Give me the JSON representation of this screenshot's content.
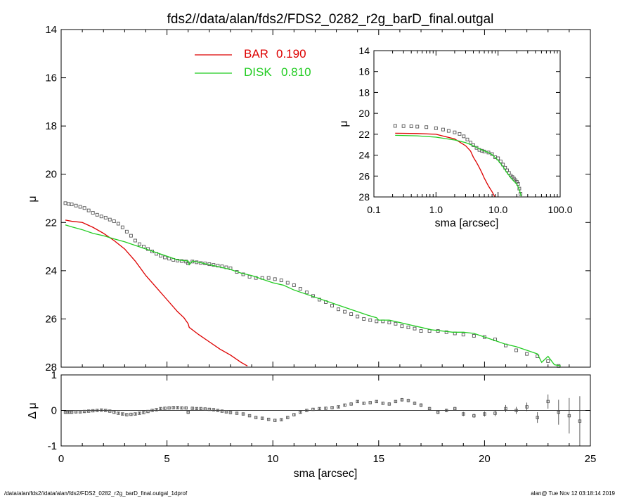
{
  "chart_data": [
    {
      "id": "main",
      "type": "scatter",
      "title": "fds2//data/alan/fds2/FDS2_0282_r2g_barD_final.outgal",
      "xlabel": "sma [arcsec]",
      "ylabel": "μ",
      "xlim": [
        0,
        25
      ],
      "ylim": [
        28,
        14
      ],
      "xticks": [
        0,
        5,
        10,
        15,
        20,
        25
      ],
      "yticks": [
        14,
        16,
        18,
        20,
        22,
        24,
        26,
        28
      ],
      "legend_position": "top-center",
      "series": [
        {
          "name": "BAR",
          "label": "BAR",
          "value_label": "0.190",
          "kind": "line",
          "color": "#dd0000",
          "x": [
            0.2,
            0.5,
            1.0,
            1.5,
            2.0,
            2.5,
            3.0,
            3.5,
            4.0,
            4.5,
            5.0,
            5.5,
            5.8,
            6.0,
            6.05,
            6.2,
            6.5,
            7.0,
            7.5,
            8.0,
            8.5,
            8.8
          ],
          "y": [
            21.9,
            21.95,
            22.0,
            22.2,
            22.45,
            22.75,
            23.1,
            23.6,
            24.2,
            24.7,
            25.2,
            25.7,
            25.95,
            26.2,
            26.35,
            26.45,
            26.65,
            26.95,
            27.25,
            27.5,
            27.8,
            27.95
          ]
        },
        {
          "name": "DISK",
          "label": "DISK",
          "value_label": "0.810",
          "kind": "line",
          "color": "#22cc22",
          "x": [
            0.2,
            0.5,
            1.0,
            1.5,
            2.0,
            2.5,
            3.0,
            3.5,
            4.0,
            4.5,
            5.0,
            5.5,
            6.0,
            6.05,
            6.2,
            6.5,
            7.0,
            7.5,
            8.0,
            8.5,
            9.0,
            9.5,
            10.0,
            10.5,
            11.0,
            11.5,
            12.0,
            12.5,
            13.0,
            13.5,
            14.0,
            14.5,
            14.9,
            15.0,
            15.5,
            16.0,
            16.5,
            17.0,
            17.5,
            18.0,
            18.5,
            19.0,
            19.5,
            20.0,
            20.5,
            21.0,
            21.5,
            22.0,
            22.5,
            22.7,
            23.0,
            23.3,
            23.6
          ],
          "y": [
            22.1,
            22.18,
            22.3,
            22.45,
            22.55,
            22.68,
            22.8,
            22.95,
            23.1,
            23.25,
            23.4,
            23.55,
            23.6,
            23.75,
            23.6,
            23.65,
            23.75,
            23.85,
            23.95,
            24.1,
            24.2,
            24.35,
            24.5,
            24.6,
            24.8,
            24.95,
            25.1,
            25.25,
            25.4,
            25.55,
            25.7,
            25.85,
            25.95,
            26.05,
            26.05,
            26.15,
            26.25,
            26.35,
            26.45,
            26.5,
            26.55,
            26.55,
            26.6,
            26.75,
            26.9,
            27.05,
            27.15,
            27.3,
            27.45,
            27.8,
            27.55,
            27.9,
            27.95
          ]
        },
        {
          "name": "data",
          "kind": "markers",
          "color": "#555555",
          "x": [
            0.2,
            0.35,
            0.5,
            0.7,
            0.9,
            1.1,
            1.3,
            1.5,
            1.7,
            1.9,
            2.1,
            2.3,
            2.5,
            2.7,
            2.9,
            3.1,
            3.3,
            3.5,
            3.7,
            3.9,
            4.1,
            4.3,
            4.5,
            4.7,
            4.9,
            5.1,
            5.3,
            5.5,
            5.7,
            5.9,
            6.0,
            6.2,
            6.4,
            6.6,
            6.8,
            7.0,
            7.2,
            7.4,
            7.6,
            7.8,
            8.0,
            8.3,
            8.6,
            8.9,
            9.2,
            9.5,
            9.8,
            10.1,
            10.4,
            10.7,
            11.0,
            11.3,
            11.6,
            11.9,
            12.2,
            12.5,
            12.8,
            13.1,
            13.4,
            13.7,
            14.0,
            14.3,
            14.6,
            14.9,
            15.2,
            15.5,
            15.8,
            16.1,
            16.4,
            16.7,
            17.0,
            17.4,
            17.8,
            18.2,
            18.6,
            19.0,
            19.5,
            20.0,
            20.5,
            21.0,
            21.5,
            22.0,
            22.5,
            23.0,
            23.5
          ],
          "y": [
            21.2,
            21.23,
            21.25,
            21.3,
            21.35,
            21.4,
            21.5,
            21.6,
            21.68,
            21.75,
            21.8,
            21.88,
            21.95,
            22.05,
            22.2,
            22.38,
            22.55,
            22.75,
            22.9,
            23.0,
            23.1,
            23.2,
            23.3,
            23.38,
            23.45,
            23.5,
            23.55,
            23.58,
            23.6,
            23.62,
            23.7,
            23.62,
            23.65,
            23.68,
            23.7,
            23.73,
            23.76,
            23.79,
            23.82,
            23.86,
            23.9,
            24.05,
            24.15,
            24.25,
            24.3,
            24.3,
            24.3,
            24.35,
            24.4,
            24.5,
            24.6,
            24.75,
            24.9,
            25.05,
            25.2,
            25.3,
            25.45,
            25.6,
            25.7,
            25.8,
            25.9,
            26.0,
            26.05,
            26.1,
            26.1,
            26.15,
            26.2,
            26.3,
            26.35,
            26.4,
            26.5,
            26.5,
            26.5,
            26.55,
            26.6,
            26.65,
            26.7,
            26.75,
            26.85,
            27.1,
            27.3,
            27.45,
            27.55,
            27.75,
            27.95
          ]
        }
      ]
    },
    {
      "id": "inset",
      "type": "line",
      "xlabel": "sma [arcsec]",
      "ylabel": "μ",
      "xscale": "log",
      "xlim": [
        0.1,
        100.0
      ],
      "ylim": [
        28,
        14
      ],
      "xtick_labels": [
        "0.1",
        "1.0",
        "10.0",
        "100.0"
      ],
      "xtick_values": [
        0.1,
        1,
        10,
        100
      ],
      "yticks": [
        14,
        16,
        18,
        20,
        22,
        24,
        26,
        28
      ],
      "series": [
        {
          "name": "data",
          "kind": "markers",
          "color": "#555555",
          "x": [
            0.22,
            0.3,
            0.4,
            0.5,
            0.7,
            1.0,
            1.3,
            1.6,
            2.0,
            2.4,
            2.8,
            3.2,
            3.6,
            4.0,
            4.5,
            5.0,
            5.5,
            6.0,
            7.0,
            8.0,
            9.0,
            10.0,
            11.0,
            12.0,
            13.0,
            14.0,
            15.0,
            16.0,
            17.0,
            18.0,
            19.0,
            20.0,
            21.0,
            22.0,
            23.0
          ],
          "y": [
            21.2,
            21.22,
            21.24,
            21.27,
            21.32,
            21.42,
            21.55,
            21.68,
            21.82,
            21.97,
            22.2,
            22.5,
            22.8,
            23.05,
            23.3,
            23.5,
            23.58,
            23.65,
            23.75,
            23.9,
            24.2,
            24.3,
            24.6,
            24.9,
            25.2,
            25.45,
            25.7,
            25.95,
            26.1,
            26.25,
            26.4,
            26.55,
            26.75,
            27.2,
            27.7
          ]
        },
        {
          "name": "BAR",
          "kind": "line",
          "color": "#dd0000",
          "x": [
            0.22,
            0.5,
            1.0,
            2.0,
            3.0,
            3.6,
            4.0,
            4.5,
            5.0,
            5.5,
            6.0,
            7.0,
            8.0,
            8.8
          ],
          "y": [
            21.9,
            21.93,
            22.0,
            22.45,
            23.1,
            23.6,
            24.2,
            24.7,
            25.2,
            25.7,
            26.2,
            26.95,
            27.5,
            27.95
          ]
        },
        {
          "name": "DISK",
          "kind": "line",
          "color": "#22cc22",
          "x": [
            0.22,
            0.5,
            1.0,
            2.0,
            3.0,
            4.0,
            5.0,
            6.0,
            7.0,
            8.0,
            10.0,
            12.0,
            14.0,
            16.0,
            18.0,
            20.0,
            22.0,
            23.6
          ],
          "y": [
            22.1,
            22.15,
            22.28,
            22.55,
            22.8,
            23.1,
            23.4,
            23.6,
            23.75,
            23.95,
            24.5,
            25.1,
            25.7,
            26.15,
            26.5,
            26.75,
            27.3,
            27.95
          ]
        }
      ]
    },
    {
      "id": "residual",
      "type": "scatter",
      "xlabel": "sma [arcsec]",
      "ylabel": "Δ μ",
      "xlim": [
        0,
        25
      ],
      "ylim": [
        -1,
        1
      ],
      "yticks": [
        -1,
        0,
        1
      ],
      "reference_line_y": 0,
      "series": [
        {
          "name": "residual",
          "kind": "markers_with_errorbars",
          "color": "#555555",
          "x": [
            0.2,
            0.35,
            0.5,
            0.7,
            0.9,
            1.1,
            1.3,
            1.5,
            1.7,
            1.9,
            2.1,
            2.3,
            2.5,
            2.7,
            2.9,
            3.1,
            3.3,
            3.5,
            3.7,
            3.9,
            4.1,
            4.3,
            4.5,
            4.7,
            4.9,
            5.1,
            5.3,
            5.5,
            5.7,
            5.9,
            6.0,
            6.2,
            6.4,
            6.6,
            6.8,
            7.0,
            7.2,
            7.4,
            7.6,
            7.8,
            8.0,
            8.3,
            8.6,
            8.9,
            9.2,
            9.5,
            9.8,
            10.1,
            10.4,
            10.7,
            11.0,
            11.3,
            11.6,
            11.9,
            12.2,
            12.5,
            12.8,
            13.1,
            13.4,
            13.7,
            14.0,
            14.3,
            14.6,
            14.9,
            15.2,
            15.5,
            15.8,
            16.1,
            16.4,
            16.7,
            17.0,
            17.4,
            17.8,
            18.2,
            18.6,
            19.0,
            19.5,
            20.0,
            20.5,
            21.0,
            21.5,
            22.0,
            22.5,
            23.0,
            23.5,
            24.0,
            24.5
          ],
          "y": [
            -0.05,
            -0.05,
            -0.05,
            -0.04,
            -0.04,
            -0.03,
            -0.02,
            -0.01,
            0.0,
            0.01,
            0.0,
            -0.02,
            -0.05,
            -0.08,
            -0.1,
            -0.12,
            -0.11,
            -0.1,
            -0.08,
            -0.06,
            -0.03,
            0.0,
            0.02,
            0.05,
            0.06,
            0.07,
            0.08,
            0.08,
            0.07,
            0.07,
            -0.05,
            0.06,
            0.05,
            0.05,
            0.04,
            0.03,
            0.02,
            0.0,
            -0.02,
            -0.04,
            -0.06,
            -0.08,
            -0.1,
            -0.15,
            -0.2,
            -0.22,
            -0.25,
            -0.28,
            -0.26,
            -0.2,
            -0.12,
            -0.05,
            0.0,
            0.03,
            0.05,
            0.06,
            0.08,
            0.1,
            0.15,
            0.18,
            0.25,
            0.2,
            0.22,
            0.25,
            0.2,
            0.18,
            0.25,
            0.3,
            0.28,
            0.2,
            0.15,
            0.05,
            -0.05,
            0.0,
            0.05,
            -0.1,
            -0.15,
            -0.1,
            -0.08,
            0.05,
            0.0,
            0.1,
            -0.2,
            0.25,
            -0.05,
            -0.15,
            -0.3
          ],
          "err": [
            0.03,
            0.03,
            0.03,
            0.03,
            0.03,
            0.03,
            0.03,
            0.03,
            0.03,
            0.03,
            0.03,
            0.03,
            0.03,
            0.03,
            0.03,
            0.03,
            0.03,
            0.03,
            0.03,
            0.03,
            0.03,
            0.03,
            0.03,
            0.03,
            0.03,
            0.03,
            0.03,
            0.03,
            0.03,
            0.03,
            0.05,
            0.03,
            0.03,
            0.03,
            0.03,
            0.03,
            0.03,
            0.03,
            0.03,
            0.03,
            0.03,
            0.03,
            0.03,
            0.03,
            0.03,
            0.03,
            0.03,
            0.03,
            0.03,
            0.03,
            0.03,
            0.03,
            0.03,
            0.03,
            0.03,
            0.03,
            0.03,
            0.03,
            0.03,
            0.03,
            0.03,
            0.03,
            0.03,
            0.03,
            0.03,
            0.03,
            0.03,
            0.05,
            0.05,
            0.05,
            0.05,
            0.05,
            0.05,
            0.05,
            0.05,
            0.06,
            0.06,
            0.07,
            0.08,
            0.1,
            0.1,
            0.12,
            0.15,
            0.2,
            0.35,
            0.5,
            0.7
          ]
        }
      ]
    }
  ],
  "footer": {
    "left": "/data/alan/fds2//data/alan/fds2/FDS2_0282_r2g_barD_final.outgal_1dprof",
    "right": "alan@  Tue Nov 12 03:18:14 2019"
  }
}
